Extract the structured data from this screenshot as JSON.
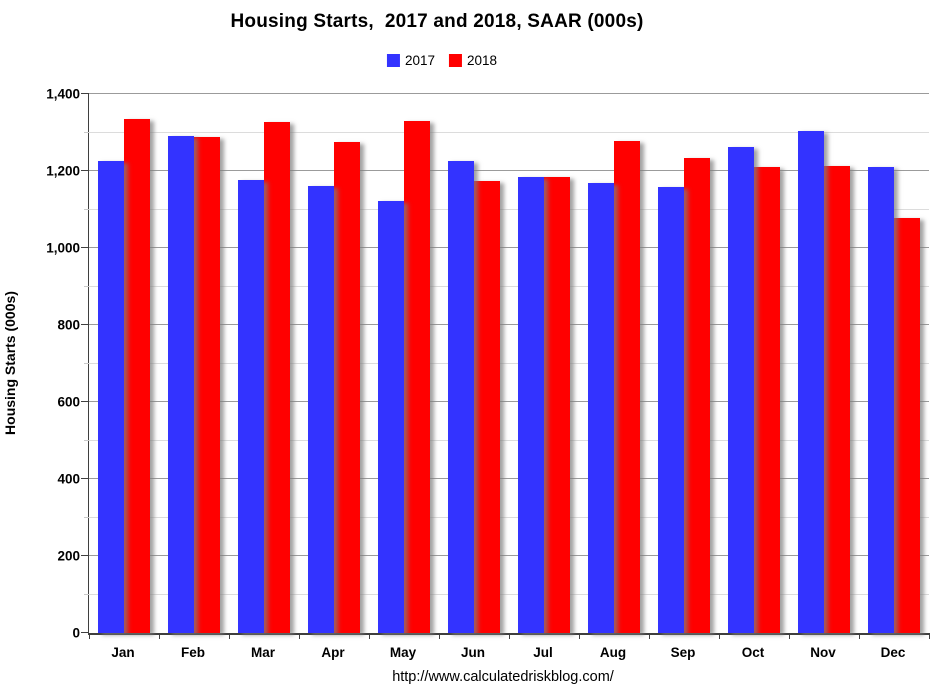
{
  "title": "Housing Starts,  2017 and 2018, SAAR (000s)",
  "footer_url": "http://www.calculatedriskblog.com/",
  "y_axis": {
    "title": "Housing Starts (000s)",
    "tick_labels": [
      "0",
      "200",
      "400",
      "600",
      "800",
      "1,000",
      "1,200",
      "1,400"
    ]
  },
  "chart_data": {
    "type": "bar",
    "title": "Housing Starts,  2017 and 2018, SAAR (000s)",
    "categories": [
      "Jan",
      "Feb",
      "Mar",
      "Apr",
      "May",
      "Jun",
      "Jul",
      "Aug",
      "Sep",
      "Oct",
      "Nov",
      "Dec"
    ],
    "series": [
      {
        "name": "2017",
        "color": "#3333FF",
        "values": [
          1225,
          1290,
          1177,
          1162,
          1122,
          1225,
          1185,
          1170,
          1158,
          1263,
          1303,
          1210
        ]
      },
      {
        "name": "2018",
        "color": "#FF0000",
        "values": [
          1334,
          1288,
          1327,
          1276,
          1329,
          1175,
          1184,
          1279,
          1235,
          1210,
          1212,
          1078
        ]
      }
    ],
    "xlabel": "",
    "ylabel": "Housing Starts (000s)",
    "ylim": [
      0,
      1400
    ],
    "y_major_step": 200,
    "y_minor_step": 100,
    "grid": true,
    "legend_position": "top-center",
    "colors": {
      "major_gridline": "#9b9b9b",
      "minor_gridline": "#dcdcdc",
      "axis_line": "#3f3f3f",
      "text": "#000000",
      "background": "#ffffff"
    }
  }
}
